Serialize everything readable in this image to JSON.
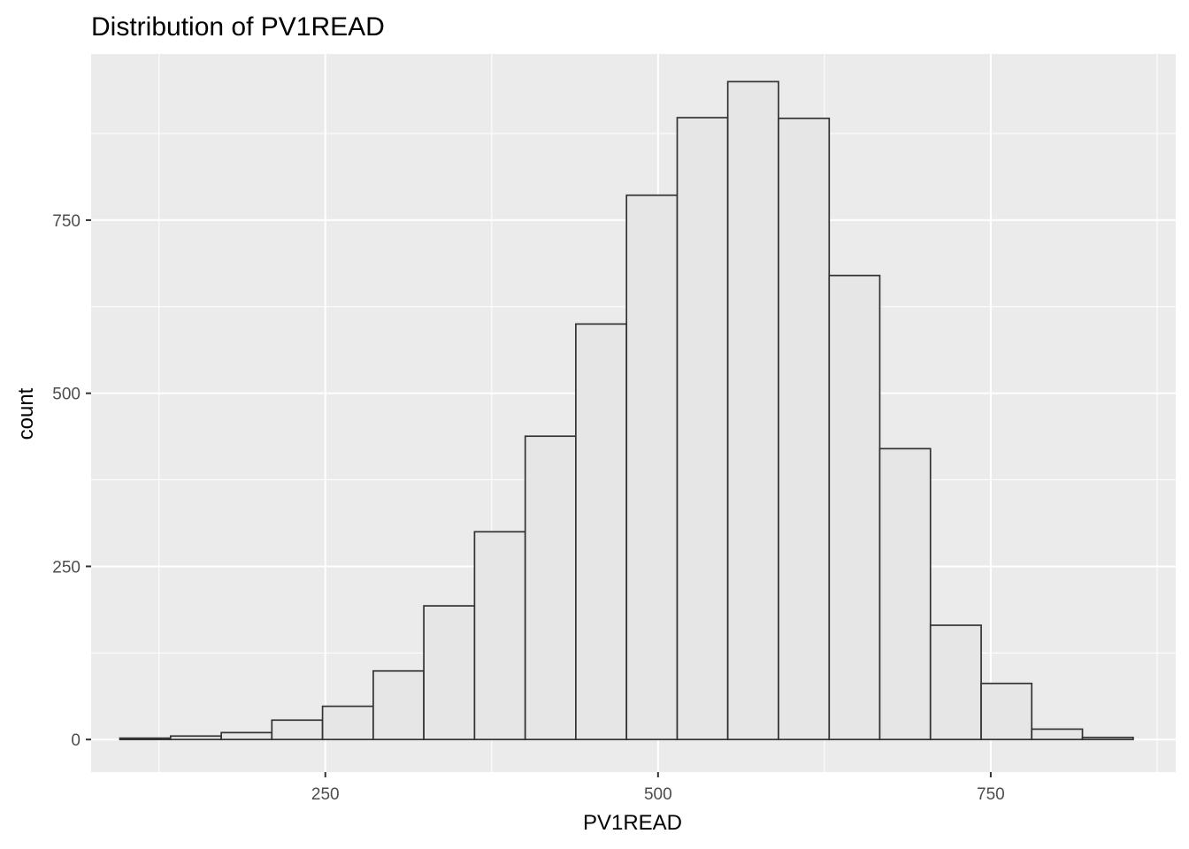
{
  "chart_data": {
    "type": "bar",
    "title": "Distribution of PV1READ",
    "xlabel": "PV1READ",
    "ylabel": "count",
    "bar_fill": "#e6e6e6",
    "bar_outline": "#333333",
    "panel_background": "#ebebeb",
    "grid": true,
    "xlim": [
      74,
      889
    ],
    "ylim": [
      -47,
      990
    ],
    "xticks": [
      250,
      500,
      750
    ],
    "yticks": [
      0,
      250,
      500,
      750
    ],
    "bin_width": 38.07,
    "bin_start": 95.6,
    "bins": [
      {
        "x_start": 95.6,
        "x_end": 133.7,
        "count": 2
      },
      {
        "x_start": 133.7,
        "x_end": 171.8,
        "count": 5
      },
      {
        "x_start": 171.8,
        "x_end": 209.8,
        "count": 10
      },
      {
        "x_start": 209.8,
        "x_end": 247.9,
        "count": 28
      },
      {
        "x_start": 247.9,
        "x_end": 286.0,
        "count": 48
      },
      {
        "x_start": 286.0,
        "x_end": 324.0,
        "count": 99
      },
      {
        "x_start": 324.0,
        "x_end": 362.1,
        "count": 193
      },
      {
        "x_start": 362.1,
        "x_end": 400.2,
        "count": 300
      },
      {
        "x_start": 400.2,
        "x_end": 438.2,
        "count": 438
      },
      {
        "x_start": 438.2,
        "x_end": 476.3,
        "count": 600
      },
      {
        "x_start": 476.3,
        "x_end": 514.4,
        "count": 786
      },
      {
        "x_start": 514.4,
        "x_end": 552.4,
        "count": 898
      },
      {
        "x_start": 552.4,
        "x_end": 590.5,
        "count": 950
      },
      {
        "x_start": 590.5,
        "x_end": 628.6,
        "count": 897
      },
      {
        "x_start": 628.6,
        "x_end": 666.6,
        "count": 670
      },
      {
        "x_start": 666.6,
        "x_end": 704.7,
        "count": 420
      },
      {
        "x_start": 704.7,
        "x_end": 742.8,
        "count": 165
      },
      {
        "x_start": 742.8,
        "x_end": 780.8,
        "count": 81
      },
      {
        "x_start": 780.8,
        "x_end": 818.9,
        "count": 15
      },
      {
        "x_start": 818.9,
        "x_end": 857.0,
        "count": 3
      }
    ]
  }
}
